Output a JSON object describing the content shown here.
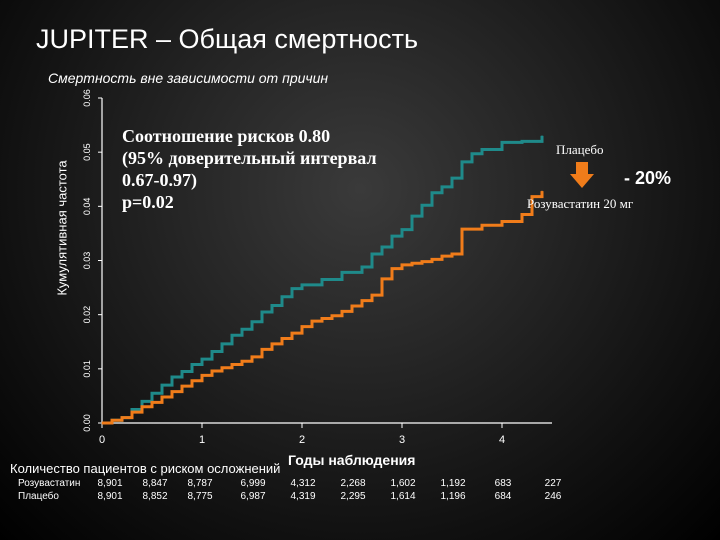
{
  "slide": {
    "title": "JUPITER – Общая смертность",
    "subtitle": "Смертность вне зависимости от причин"
  },
  "chart_data": {
    "type": "line",
    "ylabel": "Кумулятивная частота",
    "xlabel": "Годы наблюдения",
    "xlim": [
      0,
      4.5
    ],
    "ylim": [
      0,
      0.06
    ],
    "x_ticks": [
      "0",
      "1",
      "2",
      "3",
      "4"
    ],
    "y_ticks": [
      "0.00",
      "0.01",
      "0.02",
      "0.03",
      "0.04",
      "0.05",
      "0.06"
    ],
    "series": [
      {
        "name": "Плацебо",
        "color": "#1f8a8a",
        "x": [
          0,
          0.1,
          0.2,
          0.3,
          0.4,
          0.5,
          0.6,
          0.7,
          0.8,
          0.9,
          1.0,
          1.1,
          1.2,
          1.3,
          1.4,
          1.5,
          1.6,
          1.7,
          1.8,
          1.9,
          2.0,
          2.2,
          2.4,
          2.6,
          2.7,
          2.8,
          2.9,
          3.0,
          3.1,
          3.2,
          3.3,
          3.4,
          3.5,
          3.6,
          3.7,
          3.8,
          4.0,
          4.2,
          4.4
        ],
        "y": [
          0.0,
          0.0005,
          0.001,
          0.0025,
          0.004,
          0.0055,
          0.007,
          0.0085,
          0.0095,
          0.0108,
          0.0118,
          0.0132,
          0.0146,
          0.0162,
          0.0173,
          0.0187,
          0.0205,
          0.0217,
          0.0233,
          0.0248,
          0.0255,
          0.0265,
          0.0278,
          0.0288,
          0.0312,
          0.0325,
          0.0345,
          0.0357,
          0.0382,
          0.0402,
          0.0425,
          0.0436,
          0.0452,
          0.0482,
          0.0497,
          0.0505,
          0.0518,
          0.052,
          0.053
        ]
      },
      {
        "name": "Розувастатин 20 мг",
        "color": "#f07c1a",
        "x": [
          0,
          0.1,
          0.2,
          0.3,
          0.4,
          0.5,
          0.6,
          0.7,
          0.8,
          0.9,
          1.0,
          1.1,
          1.2,
          1.3,
          1.4,
          1.5,
          1.6,
          1.7,
          1.8,
          1.9,
          2.0,
          2.1,
          2.2,
          2.3,
          2.4,
          2.5,
          2.6,
          2.7,
          2.8,
          2.9,
          3.0,
          3.1,
          3.2,
          3.3,
          3.4,
          3.5,
          3.6,
          3.8,
          4.0,
          4.2,
          4.3,
          4.4
        ],
        "y": [
          0.0,
          0.0005,
          0.001,
          0.002,
          0.003,
          0.0038,
          0.0048,
          0.0058,
          0.0068,
          0.0078,
          0.0088,
          0.0096,
          0.0102,
          0.0108,
          0.0114,
          0.0122,
          0.0136,
          0.0146,
          0.0156,
          0.0166,
          0.0178,
          0.0188,
          0.0193,
          0.0198,
          0.0206,
          0.0216,
          0.0226,
          0.0236,
          0.0266,
          0.0285,
          0.0292,
          0.0295,
          0.0298,
          0.0302,
          0.0308,
          0.0312,
          0.0358,
          0.0365,
          0.0372,
          0.0385,
          0.0418,
          0.0428
        ]
      }
    ],
    "annotations": {
      "hazard_ratio": [
        "Соотношение рисков 0.80",
        "(95% доверительный интервал",
        "0.67-0.97)",
        "p=0.02"
      ],
      "reduction": "- 20%",
      "placebo_label": "Плацебо",
      "rosuvastatin_label": "Розувастатин 20 мг"
    }
  },
  "risk_table": {
    "title": "Количество пациентов с риском осложнений",
    "rows": [
      {
        "label": "Розувастатин",
        "values": [
          "8,901",
          "8,847",
          "8,787",
          "6,999",
          "4,312",
          "2,268",
          "1,602",
          "1,192",
          "683",
          "227"
        ]
      },
      {
        "label": "Плацебо",
        "values": [
          "8,901",
          "8,852",
          "8,775",
          "6,987",
          "4,319",
          "2,295",
          "1,614",
          "1,196",
          "684",
          "246"
        ]
      }
    ]
  }
}
